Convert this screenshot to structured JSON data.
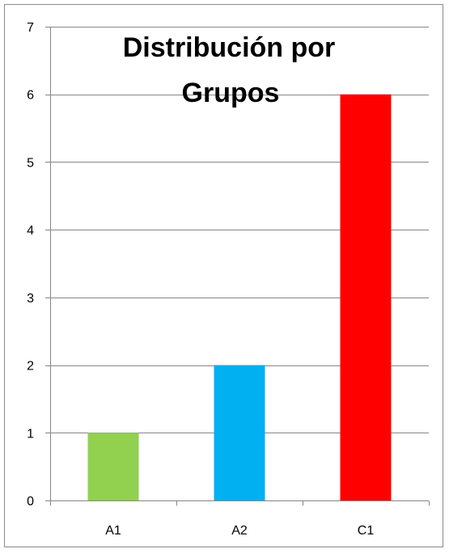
{
  "chart_data": {
    "type": "bar",
    "title_lines": [
      "Distribución por",
      "Grupos"
    ],
    "categories": [
      "A1",
      "A2",
      "C1"
    ],
    "values": [
      1,
      2,
      6
    ],
    "colors": [
      "#92d050",
      "#00b0f0",
      "#ff0000"
    ],
    "ylim": [
      0,
      7
    ],
    "yticks": [
      "0",
      "1",
      "2",
      "3",
      "4",
      "5",
      "6",
      "7"
    ],
    "grid": true,
    "legend": "none",
    "xlabel": "",
    "ylabel": ""
  }
}
